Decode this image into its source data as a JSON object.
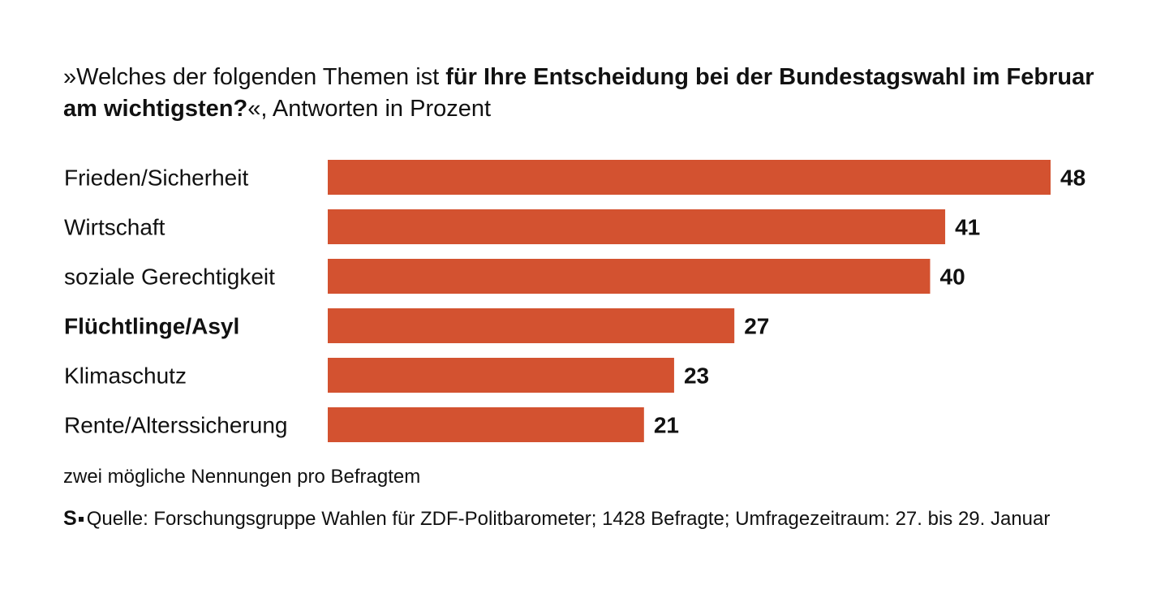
{
  "title": {
    "prefix": "»Welches der folgenden Themen ist ",
    "bold": "für Ihre Entscheidung bei der Bundestagswahl im Februar am wichtigsten?",
    "suffix": "«, Antworten in Prozent"
  },
  "chart_data": {
    "type": "bar",
    "orientation": "horizontal",
    "categories": [
      "Frieden/Sicherheit",
      "Wirtschaft",
      "soziale Gerechtigkeit",
      "Flüchtlinge/Asyl",
      "Klimaschutz",
      "Rente/Alterssicherung"
    ],
    "values": [
      48,
      41,
      40,
      27,
      23,
      21
    ],
    "highlighted": [
      "Flüchtlinge/Asyl"
    ],
    "xlim": [
      0,
      48
    ],
    "unit": "Prozent",
    "bar_color": "#d35230",
    "grid": false,
    "legend": "none"
  },
  "note": "zwei mögliche Nennungen pro Befragtem",
  "source": {
    "logo": "S",
    "text": "Quelle: Forschungsgruppe Wahlen für ZDF-Politbarometer; 1428 Befragte; Umfragezeitraum: 27. bis 29. Januar"
  }
}
